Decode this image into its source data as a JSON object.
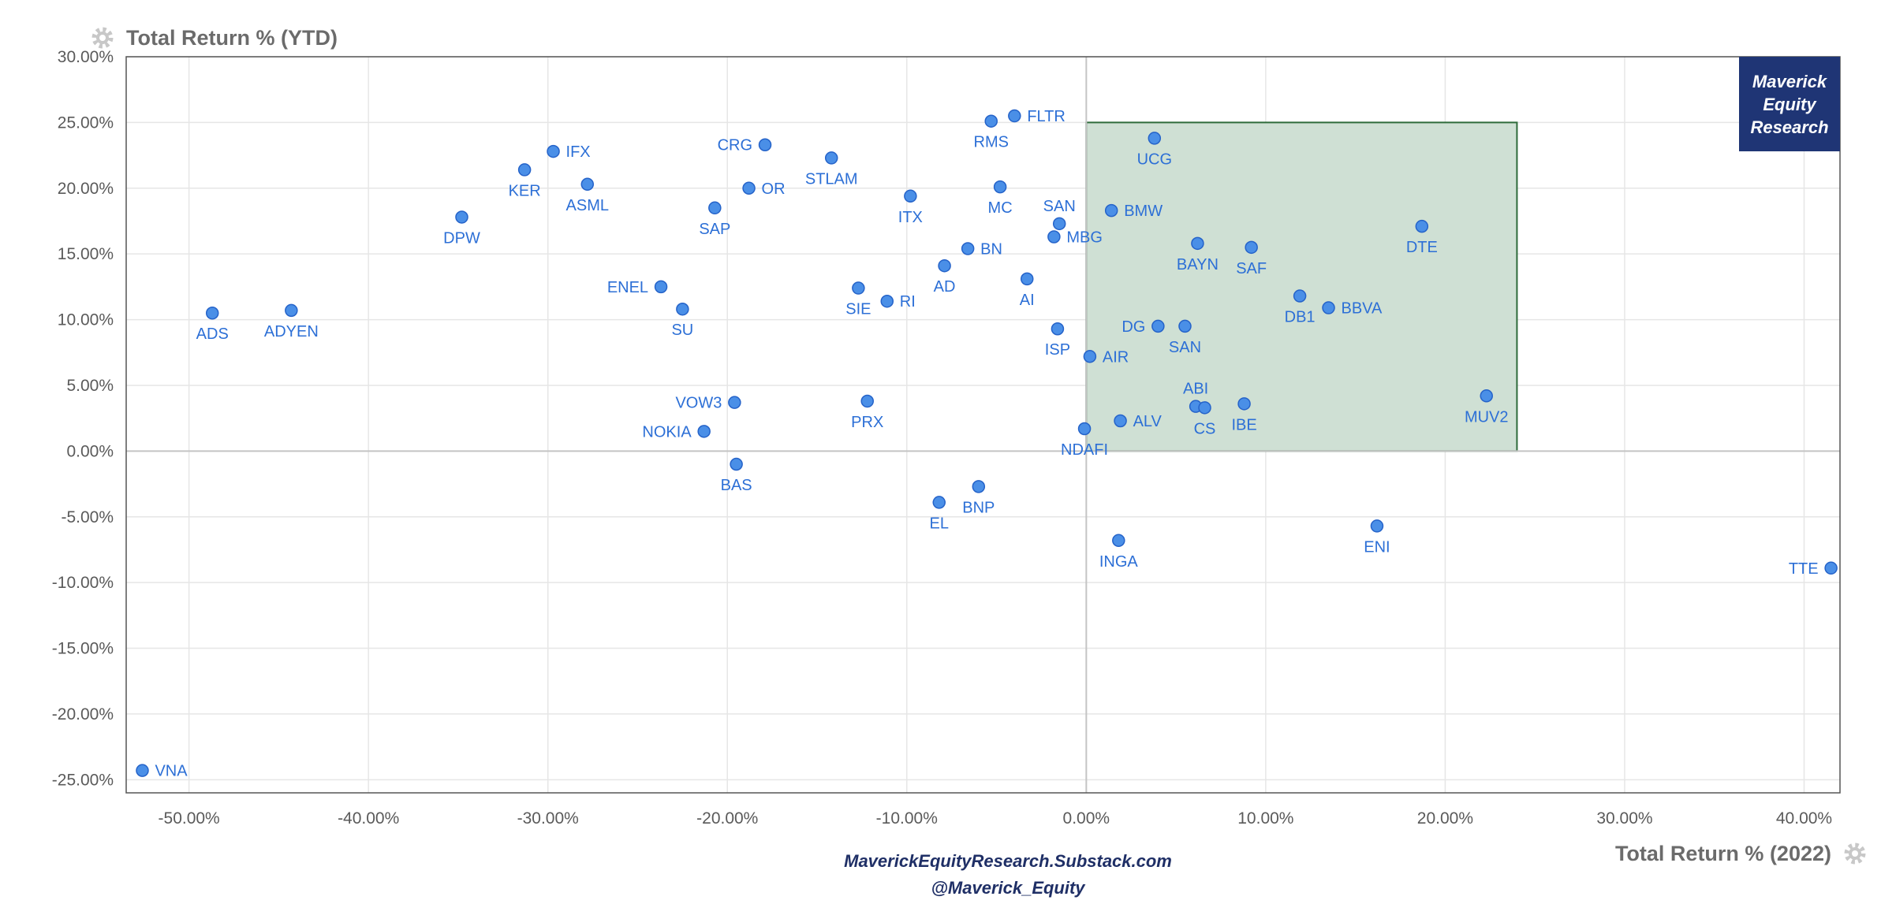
{
  "chart_data": {
    "type": "scatter",
    "title": "",
    "xlabel": "Total Return % (2022)",
    "ylabel": "Total Return % (YTD)",
    "xlim": [
      -53.5,
      42
    ],
    "ylim": [
      -26,
      30
    ],
    "x_ticks": [
      "-50.00%",
      "-40.00%",
      "-30.00%",
      "-20.00%",
      "-10.00%",
      "0.00%",
      "10.00%",
      "20.00%",
      "30.00%",
      "40.00%"
    ],
    "y_ticks": [
      "30.00%",
      "25.00%",
      "20.00%",
      "15.00%",
      "10.00%",
      "5.00%",
      "0.00%",
      "-5.00%",
      "-10.00%",
      "-15.00%",
      "-20.00%",
      "-25.00%"
    ],
    "grid": true,
    "highlight_region": {
      "x": [
        0,
        24
      ],
      "y": [
        0,
        25
      ],
      "color": "#cfe0d4",
      "border": "#2e6b3a"
    },
    "colors": {
      "point": "#4a8fe7",
      "point_stroke": "#2563c9",
      "label": "#2c6fd6",
      "badge": "#1f3575"
    },
    "points": [
      {
        "name": "VNA",
        "x": -52.6,
        "y": -24.3
      },
      {
        "name": "ADS",
        "x": -48.7,
        "y": 10.5
      },
      {
        "name": "ADYEN",
        "x": -44.3,
        "y": 10.7
      },
      {
        "name": "DPW",
        "x": -34.8,
        "y": 17.8
      },
      {
        "name": "KER",
        "x": -31.3,
        "y": 21.4
      },
      {
        "name": "IFX",
        "x": -29.7,
        "y": 22.8
      },
      {
        "name": "ASML",
        "x": -27.8,
        "y": 20.3
      },
      {
        "name": "ENEL",
        "x": -23.7,
        "y": 12.5
      },
      {
        "name": "SU",
        "x": -22.5,
        "y": 10.8
      },
      {
        "name": "NOKIA",
        "x": -21.3,
        "y": 1.5
      },
      {
        "name": "SAP",
        "x": -20.7,
        "y": 18.5
      },
      {
        "name": "VOW3",
        "x": -19.6,
        "y": 3.7
      },
      {
        "name": "BAS",
        "x": -19.5,
        "y": -1.0
      },
      {
        "name": "OR",
        "x": -18.8,
        "y": 20.0
      },
      {
        "name": "CRG",
        "x": -17.9,
        "y": 23.3
      },
      {
        "name": "STLAM",
        "x": -14.2,
        "y": 22.3
      },
      {
        "name": "SIE",
        "x": -12.7,
        "y": 12.4
      },
      {
        "name": "PRX",
        "x": -12.2,
        "y": 3.8
      },
      {
        "name": "RI",
        "x": -11.1,
        "y": 11.4
      },
      {
        "name": "ITX",
        "x": -9.8,
        "y": 19.4
      },
      {
        "name": "EL",
        "x": -8.2,
        "y": -3.9
      },
      {
        "name": "AD",
        "x": -7.9,
        "y": 14.1
      },
      {
        "name": "BN",
        "x": -6.6,
        "y": 15.4
      },
      {
        "name": "BNP",
        "x": -6.0,
        "y": -2.7
      },
      {
        "name": "RMS",
        "x": -5.3,
        "y": 25.1
      },
      {
        "name": "MC",
        "x": -4.8,
        "y": 20.1
      },
      {
        "name": "FLTR",
        "x": -4.0,
        "y": 25.5
      },
      {
        "name": "AI",
        "x": -3.3,
        "y": 13.1
      },
      {
        "name": "MBG",
        "x": -1.8,
        "y": 16.3
      },
      {
        "name": "SAN",
        "x": -1.5,
        "y": 17.3
      },
      {
        "name": "ISP",
        "x": -1.6,
        "y": 9.3
      },
      {
        "name": "NDAFI",
        "x": -0.1,
        "y": 1.7
      },
      {
        "name": "AIR",
        "x": 0.2,
        "y": 7.2
      },
      {
        "name": "BMW",
        "x": 1.4,
        "y": 18.3
      },
      {
        "name": "INGA",
        "x": 1.8,
        "y": -6.8
      },
      {
        "name": "ALV",
        "x": 1.9,
        "y": 2.3
      },
      {
        "name": "UCG",
        "x": 3.8,
        "y": 23.8
      },
      {
        "name": "DG",
        "x": 4.0,
        "y": 9.5
      },
      {
        "name": "SAN",
        "x": 5.5,
        "y": 9.5
      },
      {
        "name": "ABI",
        "x": 6.1,
        "y": 3.4
      },
      {
        "name": "BAYN",
        "x": 6.2,
        "y": 15.8
      },
      {
        "name": "CS",
        "x": 6.6,
        "y": 3.3
      },
      {
        "name": "IBE",
        "x": 8.8,
        "y": 3.6
      },
      {
        "name": "SAF",
        "x": 9.2,
        "y": 15.5
      },
      {
        "name": "DB1",
        "x": 11.9,
        "y": 11.8
      },
      {
        "name": "BBVA",
        "x": 13.5,
        "y": 10.9
      },
      {
        "name": "ENI",
        "x": 16.2,
        "y": -5.7
      },
      {
        "name": "DTE",
        "x": 18.7,
        "y": 17.1
      },
      {
        "name": "MUV2",
        "x": 22.3,
        "y": 4.2
      },
      {
        "name": "TTE",
        "x": 41.5,
        "y": -8.9
      }
    ]
  },
  "badge": {
    "line1": "Maverick",
    "line2": "Equity",
    "line3": "Research"
  },
  "footer": {
    "line1": "MaverickEquityResearch.Substack.com",
    "line2": "@Maverick_Equity"
  },
  "icons": {
    "top_left": "gear-icon",
    "bottom_right": "gear-icon"
  }
}
